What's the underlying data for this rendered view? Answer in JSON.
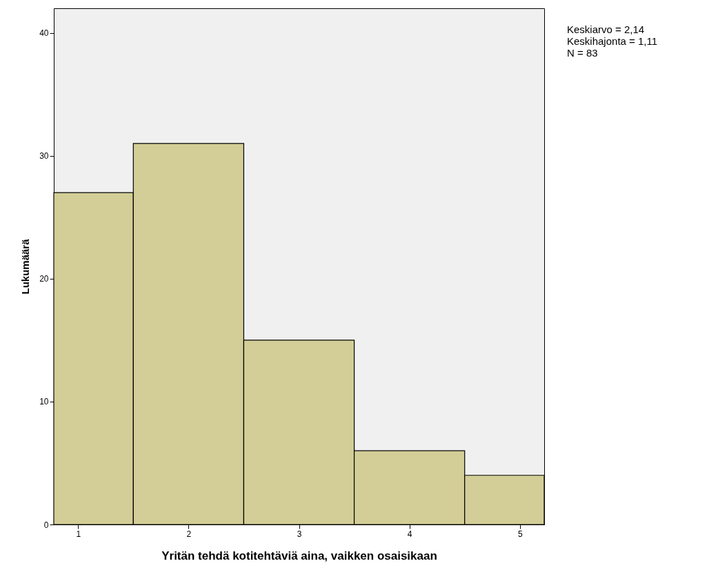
{
  "chart_data": {
    "type": "histogram",
    "xlabel": "Yritän tehdä kotitehtäviä aina, vaikken osaisikaan",
    "ylabel": "Lukumäärä",
    "bins": [
      0.78,
      1.5,
      2.5,
      3.5,
      4.5,
      5.22
    ],
    "values": [
      27,
      31,
      15,
      6,
      4
    ],
    "color": "#d3ce97",
    "xlim": [
      0.78,
      5.22
    ],
    "xticks": [
      1,
      2,
      3,
      4,
      5
    ],
    "ylim": [
      0,
      42
    ],
    "yticks": [
      0,
      10,
      20,
      30,
      40
    ],
    "grid": false,
    "annotations": [
      "Keskiarvo = 2,14",
      "Keskihajonta = 1,11",
      "N = 83"
    ]
  }
}
